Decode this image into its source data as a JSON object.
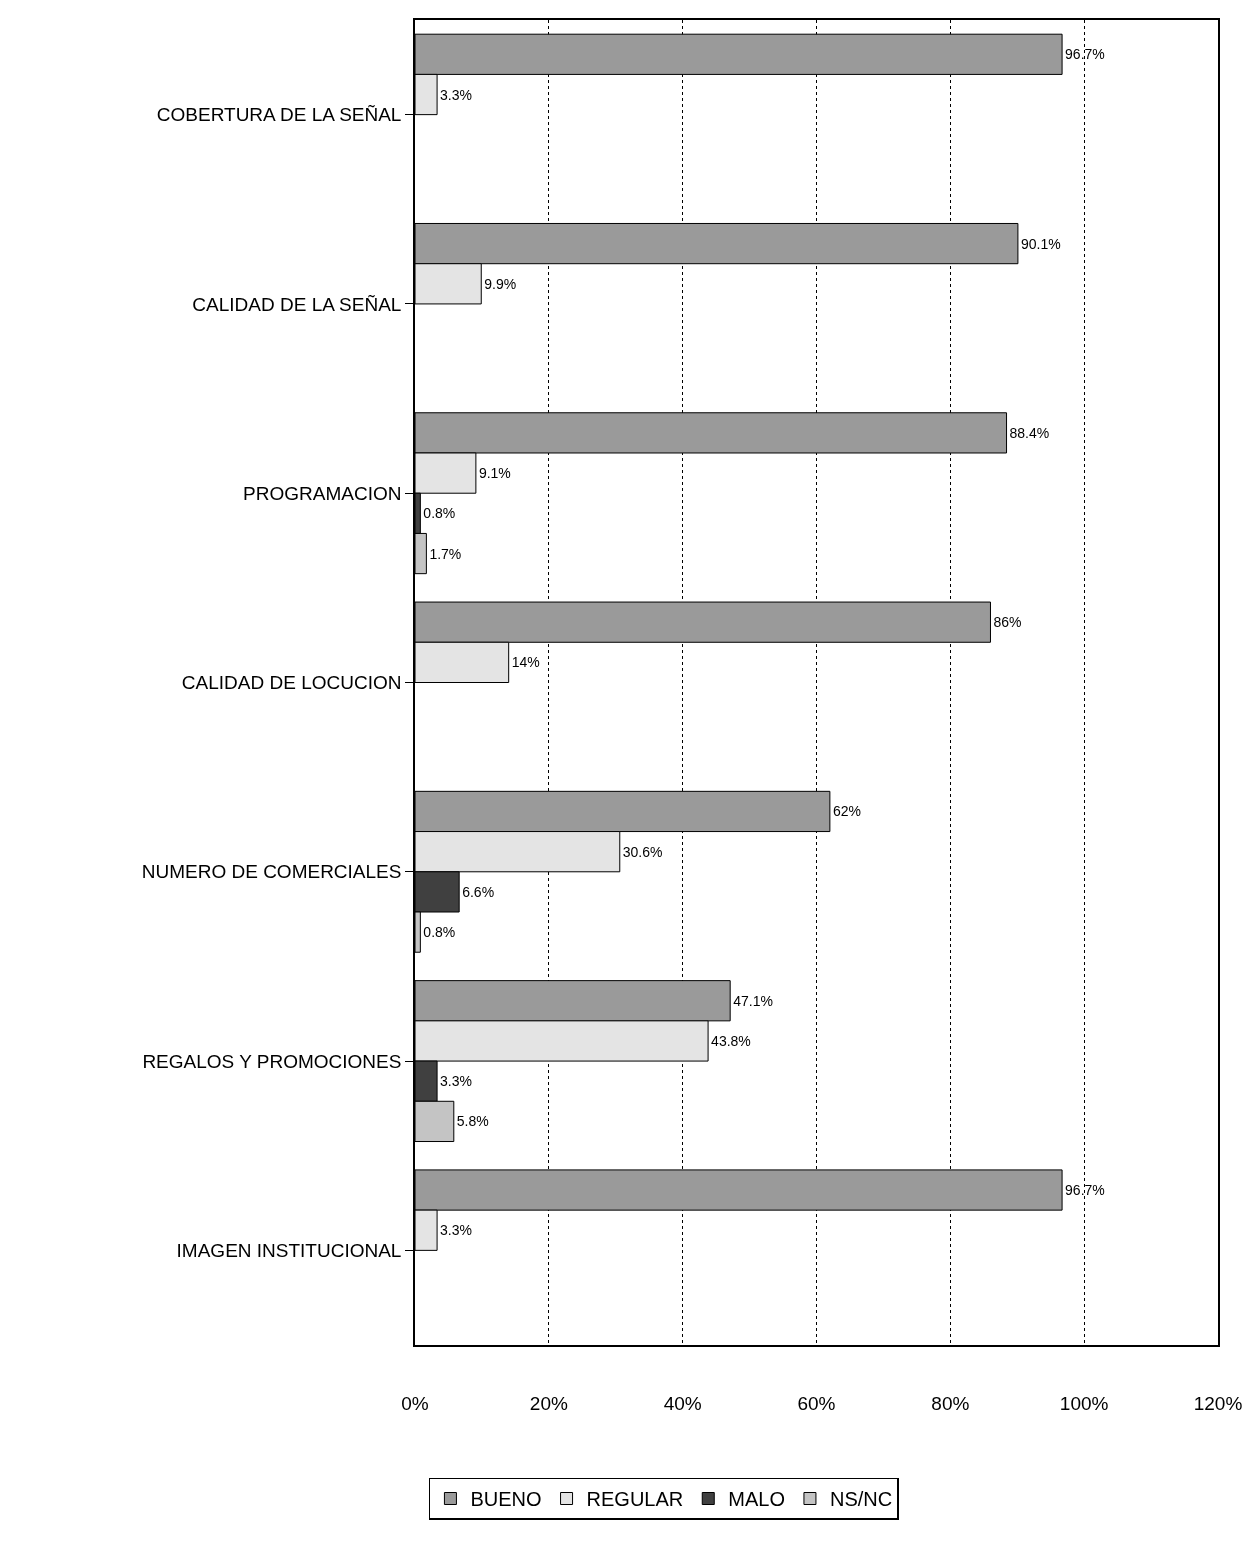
{
  "chart_data": {
    "type": "bar",
    "orientation": "horizontal",
    "categories": [
      "COBERTURA DE LA SEÑAL",
      "CALIDAD DE LA SEÑAL",
      "PROGRAMACION",
      "CALIDAD DE LOCUCION",
      "NUMERO DE COMERCIALES",
      "REGALOS Y PROMOCIONES",
      "IMAGEN INSTITUCIONAL"
    ],
    "series": [
      {
        "name": "BUENO",
        "color": "#9a9a9a",
        "values": [
          96.7,
          90.1,
          88.4,
          86,
          62,
          47.1,
          96.7
        ],
        "value_labels": [
          "96.7%",
          "90.1%",
          "88.4%",
          "86%",
          "62%",
          "47.1%",
          "96.7%"
        ]
      },
      {
        "name": "REGULAR",
        "color": "#e4e4e4",
        "values": [
          3.3,
          9.9,
          9.1,
          14,
          30.6,
          43.8,
          3.3
        ],
        "value_labels": [
          "3.3%",
          "9.9%",
          "9.1%",
          "14%",
          "30.6%",
          "43.8%",
          "3.3%"
        ]
      },
      {
        "name": "MALO",
        "color": "#404040",
        "values": [
          null,
          null,
          0.8,
          null,
          6.6,
          3.3,
          null
        ],
        "value_labels": [
          null,
          null,
          "0.8%",
          null,
          "6.6%",
          "3.3%",
          null
        ]
      },
      {
        "name": "NS/NC",
        "color": "#c4c4c4",
        "values": [
          null,
          null,
          1.7,
          null,
          0.8,
          5.8,
          null
        ],
        "value_labels": [
          null,
          null,
          "1.7%",
          null,
          "0.8%",
          "5.8%",
          null
        ]
      }
    ],
    "xlim": [
      0,
      120
    ],
    "xticks": [
      {
        "value": 0,
        "label": "0%"
      },
      {
        "value": 20,
        "label": "20%"
      },
      {
        "value": 40,
        "label": "40%"
      },
      {
        "value": 60,
        "label": "60%"
      },
      {
        "value": 80,
        "label": "80%"
      },
      {
        "value": 100,
        "label": "100%"
      },
      {
        "value": 120,
        "label": "120%"
      }
    ],
    "grid": "x",
    "legend": "bottom"
  }
}
